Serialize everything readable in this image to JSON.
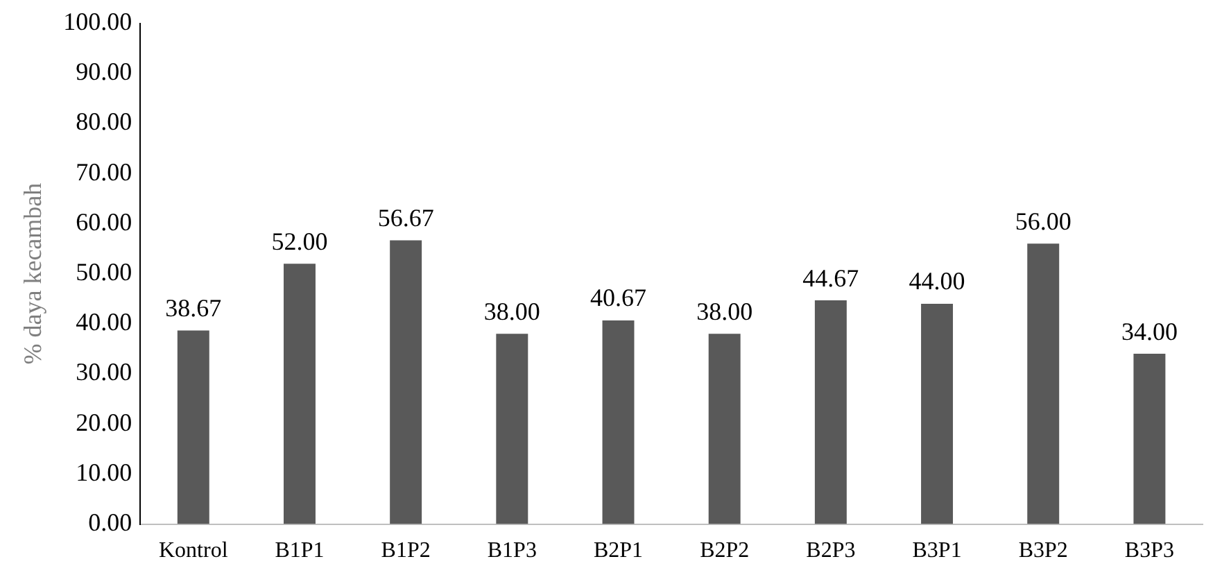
{
  "chart_data": {
    "type": "bar",
    "ylabel": "% daya kecambah",
    "categories": [
      "Kontrol",
      "B1P1",
      "B1P2",
      "B1P3",
      "B2P1",
      "B2P2",
      "B2P3",
      "B3P1",
      "B3P2",
      "B3P3"
    ],
    "values": [
      38.67,
      52.0,
      56.67,
      38.0,
      40.67,
      38.0,
      44.67,
      44.0,
      56.0,
      34.0
    ],
    "value_labels": [
      "38.67",
      "52.00",
      "56.67",
      "38.00",
      "40.67",
      "38.00",
      "44.67",
      "44.00",
      "56.00",
      "34.00"
    ],
    "color": "#595959",
    "ylim": [
      0,
      100
    ],
    "yticks": [
      {
        "value": 0,
        "label": "0.00"
      },
      {
        "value": 10,
        "label": "10.00"
      },
      {
        "value": 20,
        "label": "20.00"
      },
      {
        "value": 30,
        "label": "30.00"
      },
      {
        "value": 40,
        "label": "40.00"
      },
      {
        "value": 50,
        "label": "50.00"
      },
      {
        "value": 60,
        "label": "60.00"
      },
      {
        "value": 70,
        "label": "70.00"
      },
      {
        "value": 80,
        "label": "80.00"
      },
      {
        "value": 90,
        "label": "90.00"
      },
      {
        "value": 100,
        "label": "100.00"
      }
    ],
    "grid": false
  }
}
